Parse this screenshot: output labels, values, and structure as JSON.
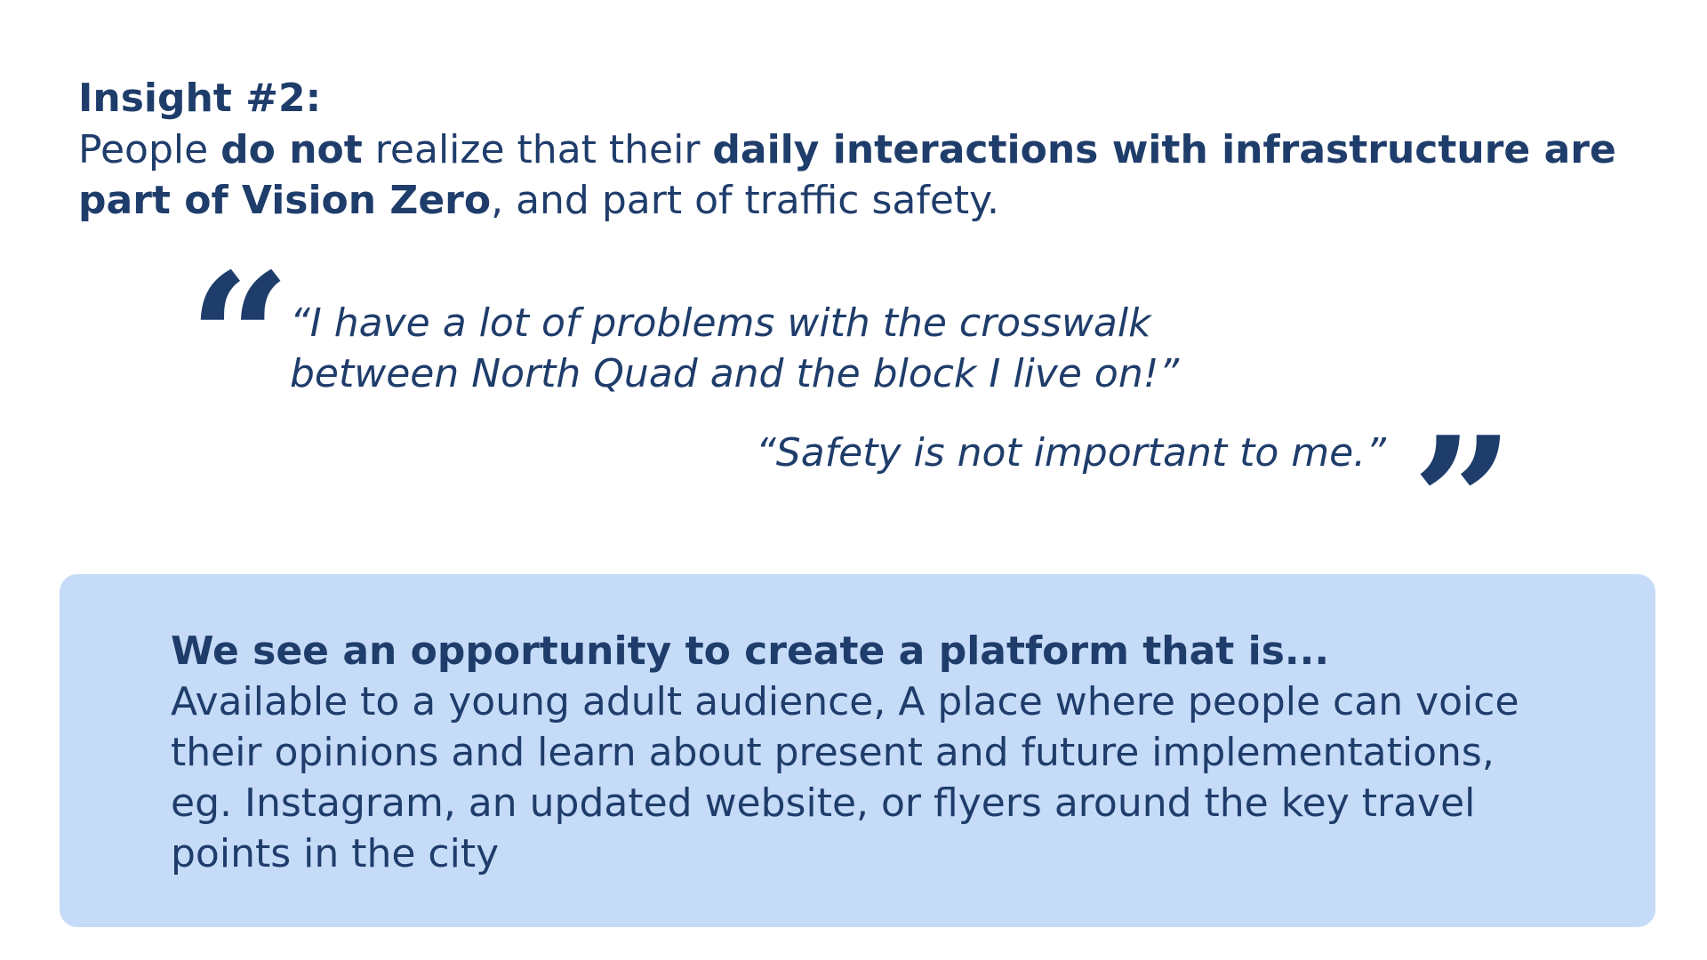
{
  "insight": {
    "title": "Insight #2:",
    "text_1": "People ",
    "bold_1": "do not",
    "text_2": " realize that their ",
    "bold_2": "daily interactions with infrastructure are part of Vision Zero",
    "text_3": ", and part of traffic safety."
  },
  "quotes": {
    "open_mark": "“",
    "close_mark": "”",
    "quote_1": "“I have a lot of problems with the crosswalk between North Quad and the block I live on!”",
    "quote_2": "“Safety is not important to me.”"
  },
  "opportunity": {
    "title": "We see an opportunity to create a platform that is...",
    "text": "Available to a young adult audience, A place where people can voice their opinions and learn about present and future implementations, eg. Instagram, an updated website, or flyers around the key travel points in the city"
  },
  "colors": {
    "text": "#1f3d6b",
    "box_background": "#c5dbf8",
    "background": "#ffffff"
  }
}
